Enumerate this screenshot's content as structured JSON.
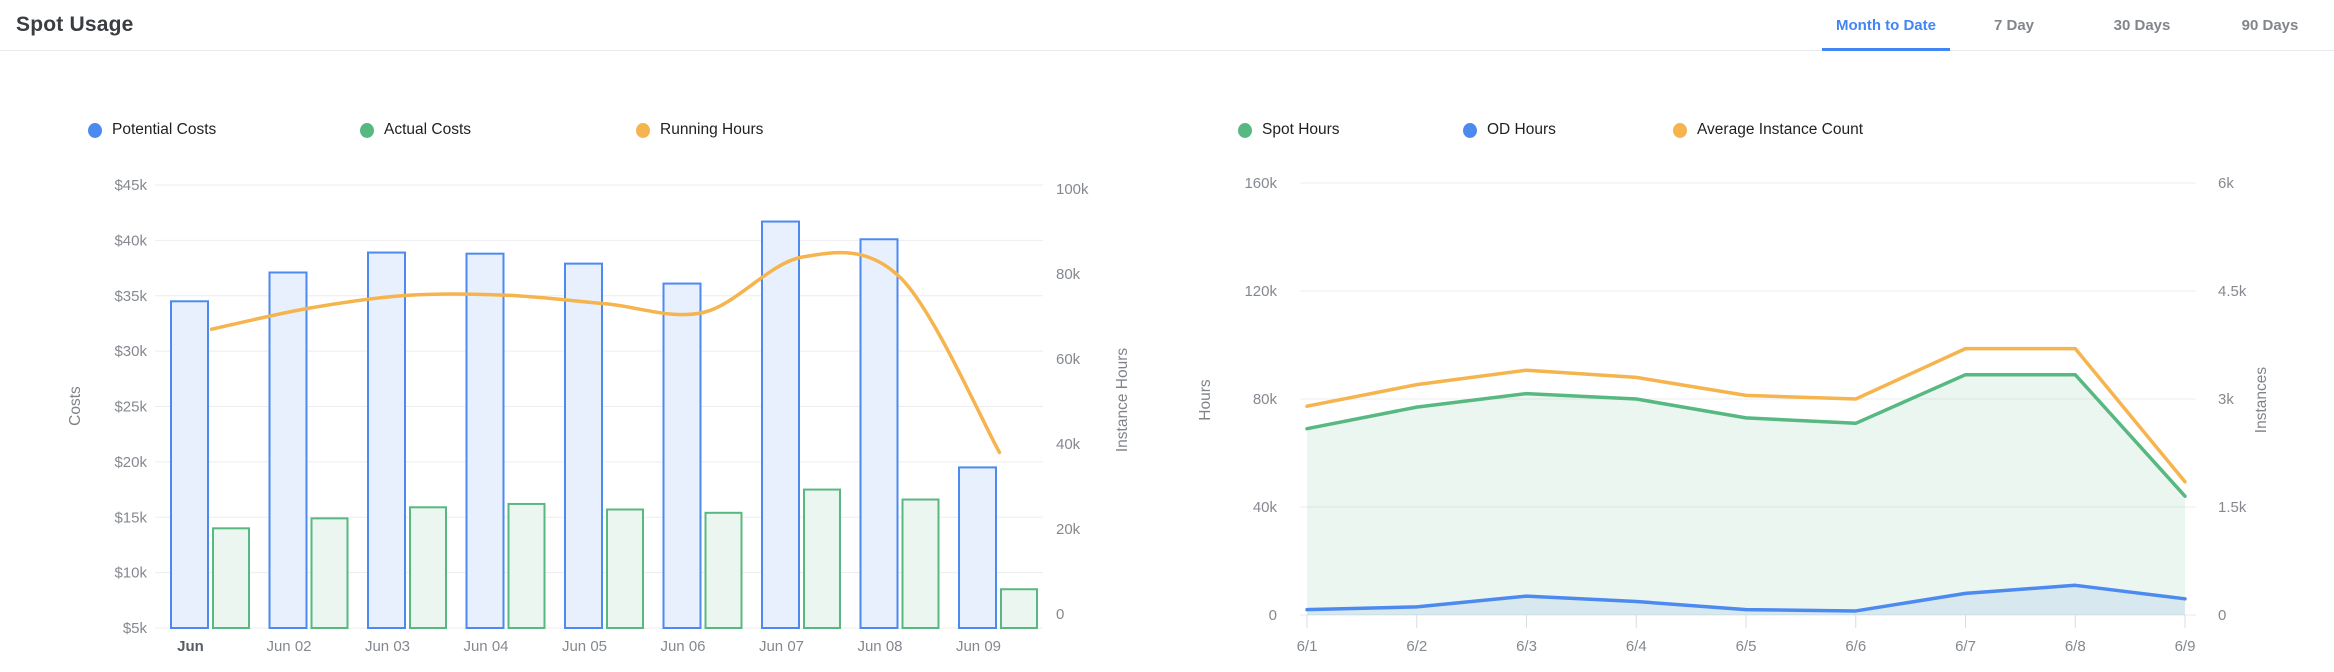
{
  "header": {
    "title": "Spot Usage",
    "tabs": [
      {
        "label": "Month to Date",
        "active": true
      },
      {
        "label": "7 Day",
        "active": false
      },
      {
        "label": "30 Days",
        "active": false
      },
      {
        "label": "90 Days",
        "active": false
      }
    ]
  },
  "colors": {
    "accent": "#4285f4",
    "tab_inactive": "#82868c",
    "title": "#3a3d42",
    "blue": "#4d8af0",
    "green": "#57bb8a",
    "orange": "#f5b44e"
  },
  "chart_data": [
    {
      "type": "bar",
      "name": "Spot usage costs by day",
      "categories": [
        "Jun",
        "Jun 02",
        "Jun 03",
        "Jun 04",
        "Jun 05",
        "Jun 06",
        "Jun 07",
        "Jun 08",
        "Jun 09"
      ],
      "left_axis": {
        "label": "Costs",
        "unit": "USD thousands",
        "min": 5,
        "max": 45,
        "tick_values": [
          5,
          10,
          15,
          20,
          25,
          30,
          35,
          40,
          45
        ],
        "tick_labels": [
          "$5k",
          "$10k",
          "$15k",
          "$20k",
          "$25k",
          "$30k",
          "$35k",
          "$40k",
          "$45k"
        ]
      },
      "right_axis": {
        "label": "Instance Hours",
        "unit": "thousands",
        "min": 0,
        "max": 100,
        "tick_values": [
          0,
          20,
          40,
          60,
          80,
          100
        ],
        "tick_labels": [
          "0",
          "20k",
          "40k",
          "60k",
          "80k",
          "100k"
        ]
      },
      "series": [
        {
          "name": "Potential Costs",
          "type": "bar",
          "axis": "left",
          "color": "#4d8af0",
          "fill": "#e9f0fd",
          "values": [
            34.5,
            37.1,
            38.9,
            38.8,
            37.9,
            36.1,
            41.7,
            40.1,
            19.5
          ]
        },
        {
          "name": "Actual Costs",
          "type": "bar",
          "axis": "left",
          "color": "#58b882",
          "fill": "#ebf6f0",
          "values": [
            14,
            14.9,
            15.9,
            16.2,
            15.7,
            15.4,
            17.5,
            16.6,
            8.5
          ]
        },
        {
          "name": "Running Hours",
          "type": "line",
          "axis": "right",
          "color": "#f5b44e",
          "values": [
            67,
            72,
            75,
            75,
            73,
            71,
            84,
            79,
            38
          ]
        }
      ]
    },
    {
      "type": "area",
      "name": "Spot usage hours and instances by day",
      "categories": [
        "6/1",
        "6/2",
        "6/3",
        "6/4",
        "6/5",
        "6/6",
        "6/7",
        "6/8",
        "6/9"
      ],
      "left_axis": {
        "label": "Hours",
        "unit": "thousands",
        "min": 0,
        "max": 160,
        "tick_values": [
          0,
          40,
          80,
          120,
          160
        ],
        "tick_labels": [
          "0",
          "40k",
          "80k",
          "120k",
          "160k"
        ]
      },
      "right_axis": {
        "label": "Instances",
        "unit": "thousands",
        "min": 0,
        "max": 6,
        "tick_values": [
          0,
          1.5,
          3,
          4.5,
          6
        ],
        "tick_labels": [
          "0",
          "1.5k",
          "3k",
          "4.5k",
          "6k"
        ]
      },
      "series": [
        {
          "name": "Spot Hours",
          "type": "area",
          "axis": "left",
          "color": "#58b882",
          "values": [
            69,
            77,
            82,
            80,
            73,
            71,
            89,
            89,
            44
          ]
        },
        {
          "name": "OD Hours",
          "type": "area",
          "axis": "left",
          "color": "#4d8af0",
          "values": [
            2,
            3,
            7,
            5,
            2,
            1.5,
            8,
            11,
            6
          ]
        },
        {
          "name": "Average Instance Count",
          "type": "line",
          "axis": "right",
          "color": "#f5b44e",
          "values": [
            2.9,
            3.2,
            3.4,
            3.3,
            3.05,
            3.0,
            3.7,
            3.7,
            1.85
          ]
        }
      ]
    }
  ]
}
